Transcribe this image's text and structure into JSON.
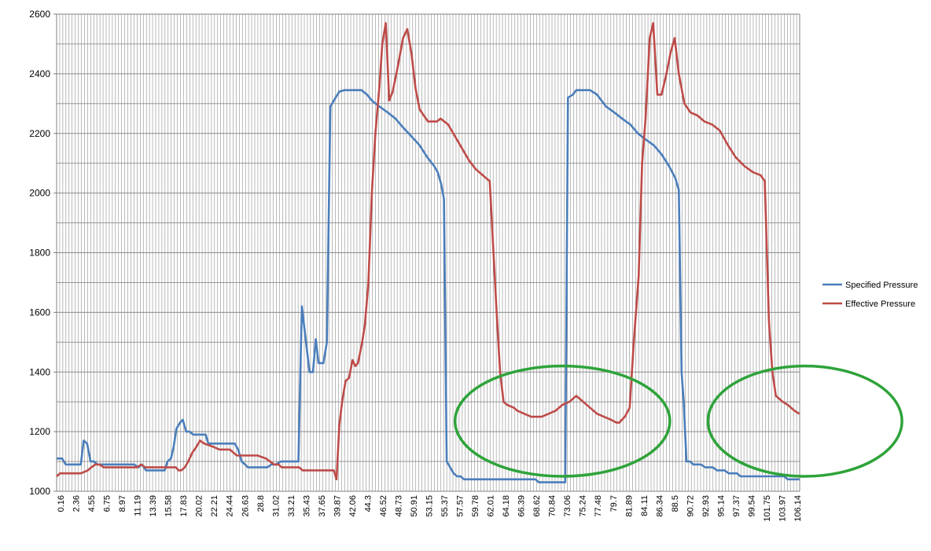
{
  "chart_data": {
    "type": "line",
    "title": "",
    "xlabel": "",
    "ylabel": "",
    "ylim": [
      1000,
      2600
    ],
    "y_ticks": [
      1000,
      1200,
      1400,
      1600,
      1800,
      2000,
      2200,
      2400,
      2600
    ],
    "x_range": [
      0,
      107.24
    ],
    "x_tick_labels": [
      "0.16",
      "2.36",
      "4.55",
      "6.75",
      "8.97",
      "11.19",
      "13.39",
      "15.58",
      "17.83",
      "20.02",
      "22.21",
      "24.44",
      "26.63",
      "28.8",
      "31.02",
      "33.21",
      "35.43",
      "37.65",
      "39.87",
      "42.06",
      "44.3",
      "46.52",
      "48.73",
      "50.91",
      "53.15",
      "55.37",
      "57.57",
      "59.78",
      "62.01",
      "64.18",
      "66.39",
      "68.62",
      "70.84",
      "73.06",
      "75.24",
      "77.48",
      "79.7",
      "81.89",
      "84.11",
      "86.34",
      "88.5",
      "90.72",
      "92.93",
      "95.14",
      "97.37",
      "99.54",
      "101.75",
      "103.97",
      "106.14"
    ],
    "grid": "on",
    "legend_position": "right",
    "series": [
      {
        "name": "Specified Pressure",
        "color": "#4a7ebb",
        "points": [
          [
            0,
            1110
          ],
          [
            0.8,
            1110
          ],
          [
            1.3,
            1090
          ],
          [
            2.6,
            1090
          ],
          [
            3.5,
            1090
          ],
          [
            3.9,
            1170
          ],
          [
            4.4,
            1160
          ],
          [
            4.9,
            1100
          ],
          [
            5.4,
            1100
          ],
          [
            5.9,
            1090
          ],
          [
            7,
            1090
          ],
          [
            9,
            1090
          ],
          [
            11.2,
            1090
          ],
          [
            11.8,
            1080
          ],
          [
            12.3,
            1090
          ],
          [
            12.9,
            1070
          ],
          [
            14.5,
            1070
          ],
          [
            15.6,
            1070
          ],
          [
            16,
            1100
          ],
          [
            16.5,
            1110
          ],
          [
            16.9,
            1150
          ],
          [
            17.3,
            1210
          ],
          [
            17.8,
            1230
          ],
          [
            18.2,
            1240
          ],
          [
            18.7,
            1200
          ],
          [
            19.2,
            1200
          ],
          [
            19.7,
            1190
          ],
          [
            20.7,
            1190
          ],
          [
            21.5,
            1190
          ],
          [
            21.9,
            1160
          ],
          [
            24.5,
            1160
          ],
          [
            25.7,
            1160
          ],
          [
            26.2,
            1140
          ],
          [
            26.7,
            1100
          ],
          [
            27.2,
            1090
          ],
          [
            27.6,
            1080
          ],
          [
            29,
            1080
          ],
          [
            30.4,
            1080
          ],
          [
            31,
            1090
          ],
          [
            31.6,
            1090
          ],
          [
            32.4,
            1100
          ],
          [
            34,
            1100
          ],
          [
            34.9,
            1100
          ],
          [
            35.4,
            1620
          ],
          [
            36,
            1500
          ],
          [
            36.5,
            1400
          ],
          [
            37,
            1400
          ],
          [
            37.4,
            1510
          ],
          [
            37.8,
            1430
          ],
          [
            38.5,
            1430
          ],
          [
            39,
            1500
          ],
          [
            39.5,
            2290
          ],
          [
            40,
            2310
          ],
          [
            40.8,
            2340
          ],
          [
            41.5,
            2345
          ],
          [
            42.5,
            2345
          ],
          [
            44,
            2345
          ],
          [
            44.8,
            2330
          ],
          [
            45.5,
            2310
          ],
          [
            46.6,
            2290
          ],
          [
            47.8,
            2270
          ],
          [
            48.9,
            2250
          ],
          [
            50,
            2220
          ],
          [
            51.2,
            2190
          ],
          [
            52.4,
            2160
          ],
          [
            53.5,
            2120
          ],
          [
            54.5,
            2090
          ],
          [
            55,
            2070
          ],
          [
            55.5,
            2030
          ],
          [
            55.9,
            1980
          ],
          [
            56.3,
            1100
          ],
          [
            56.8,
            1080
          ],
          [
            57.3,
            1060
          ],
          [
            57.8,
            1050
          ],
          [
            58.3,
            1050
          ],
          [
            58.8,
            1040
          ],
          [
            62,
            1040
          ],
          [
            66,
            1040
          ],
          [
            69.1,
            1040
          ],
          [
            69.6,
            1030
          ],
          [
            73.1,
            1030
          ],
          [
            73.4,
            1030
          ],
          [
            73.8,
            2320
          ],
          [
            74.5,
            2330
          ],
          [
            75,
            2345
          ],
          [
            77,
            2345
          ],
          [
            78,
            2330
          ],
          [
            79.3,
            2290
          ],
          [
            80.5,
            2270
          ],
          [
            81.6,
            2250
          ],
          [
            82.8,
            2230
          ],
          [
            83.9,
            2200
          ],
          [
            85,
            2180
          ],
          [
            86.2,
            2160
          ],
          [
            87.3,
            2130
          ],
          [
            88.4,
            2090
          ],
          [
            89.3,
            2050
          ],
          [
            89.8,
            2010
          ],
          [
            90.2,
            1400
          ],
          [
            90.5,
            1300
          ],
          [
            90.9,
            1100
          ],
          [
            91.4,
            1100
          ],
          [
            91.9,
            1090
          ],
          [
            93,
            1090
          ],
          [
            93.6,
            1080
          ],
          [
            94.7,
            1080
          ],
          [
            95.3,
            1070
          ],
          [
            96.4,
            1070
          ],
          [
            97,
            1060
          ],
          [
            98.2,
            1060
          ],
          [
            98.7,
            1050
          ],
          [
            100,
            1050
          ],
          [
            105,
            1050
          ],
          [
            105.5,
            1040
          ],
          [
            106.5,
            1040
          ],
          [
            107.2,
            1040
          ]
        ]
      },
      {
        "name": "Effective Pressure",
        "color": "#be4b48",
        "points": [
          [
            0,
            1050
          ],
          [
            0.5,
            1060
          ],
          [
            3.5,
            1060
          ],
          [
            4.5,
            1070
          ],
          [
            5,
            1080
          ],
          [
            5.6,
            1090
          ],
          [
            6.2,
            1090
          ],
          [
            6.8,
            1080
          ],
          [
            11,
            1080
          ],
          [
            11.6,
            1080
          ],
          [
            12.2,
            1090
          ],
          [
            12.8,
            1080
          ],
          [
            17.2,
            1080
          ],
          [
            17.6,
            1070
          ],
          [
            18,
            1070
          ],
          [
            18.5,
            1080
          ],
          [
            19,
            1100
          ],
          [
            19.6,
            1130
          ],
          [
            20.2,
            1150
          ],
          [
            20.7,
            1170
          ],
          [
            21.3,
            1160
          ],
          [
            22.5,
            1150
          ],
          [
            23.5,
            1140
          ],
          [
            25,
            1140
          ],
          [
            25.5,
            1130
          ],
          [
            26,
            1120
          ],
          [
            29,
            1120
          ],
          [
            30.2,
            1110
          ],
          [
            30.8,
            1100
          ],
          [
            31.4,
            1090
          ],
          [
            32,
            1090
          ],
          [
            32.5,
            1080
          ],
          [
            35,
            1080
          ],
          [
            35.5,
            1070
          ],
          [
            39.5,
            1070
          ],
          [
            40,
            1070
          ],
          [
            40.4,
            1040
          ],
          [
            40.8,
            1220
          ],
          [
            41.2,
            1300
          ],
          [
            41.7,
            1370
          ],
          [
            42.2,
            1380
          ],
          [
            42.7,
            1440
          ],
          [
            43.1,
            1420
          ],
          [
            43.5,
            1430
          ],
          [
            44.1,
            1500
          ],
          [
            44.5,
            1560
          ],
          [
            45,
            1700
          ],
          [
            45.5,
            2000
          ],
          [
            46,
            2200
          ],
          [
            46.6,
            2360
          ],
          [
            47,
            2500
          ],
          [
            47.5,
            2570
          ],
          [
            48,
            2310
          ],
          [
            48.5,
            2340
          ],
          [
            49.2,
            2420
          ],
          [
            50,
            2520
          ],
          [
            50.6,
            2550
          ],
          [
            51.2,
            2470
          ],
          [
            51.8,
            2350
          ],
          [
            52.4,
            2280
          ],
          [
            53.6,
            2240
          ],
          [
            54.9,
            2240
          ],
          [
            55.4,
            2250
          ],
          [
            56.5,
            2230
          ],
          [
            57.5,
            2190
          ],
          [
            58.5,
            2150
          ],
          [
            59.5,
            2110
          ],
          [
            60.5,
            2080
          ],
          [
            61.5,
            2060
          ],
          [
            62,
            2050
          ],
          [
            62.5,
            2040
          ],
          [
            63.5,
            1600
          ],
          [
            64,
            1400
          ],
          [
            64.5,
            1300
          ],
          [
            65,
            1290
          ],
          [
            66,
            1280
          ],
          [
            66.5,
            1270
          ],
          [
            67.5,
            1260
          ],
          [
            68.5,
            1250
          ],
          [
            70,
            1250
          ],
          [
            71,
            1260
          ],
          [
            72,
            1270
          ],
          [
            73,
            1290
          ],
          [
            74,
            1300
          ],
          [
            75,
            1320
          ],
          [
            76,
            1300
          ],
          [
            77,
            1280
          ],
          [
            78,
            1260
          ],
          [
            79,
            1250
          ],
          [
            80,
            1240
          ],
          [
            80.8,
            1230
          ],
          [
            81.2,
            1230
          ],
          [
            82,
            1250
          ],
          [
            82.7,
            1280
          ],
          [
            83.3,
            1500
          ],
          [
            84,
            1720
          ],
          [
            84.5,
            2100
          ],
          [
            85,
            2250
          ],
          [
            85.6,
            2520
          ],
          [
            86.1,
            2570
          ],
          [
            86.7,
            2330
          ],
          [
            87.3,
            2330
          ],
          [
            88,
            2400
          ],
          [
            88.6,
            2470
          ],
          [
            89.2,
            2520
          ],
          [
            89.8,
            2400
          ],
          [
            90.6,
            2300
          ],
          [
            91.5,
            2270
          ],
          [
            92.5,
            2260
          ],
          [
            93.5,
            2240
          ],
          [
            94.6,
            2230
          ],
          [
            95.7,
            2210
          ],
          [
            96.9,
            2160
          ],
          [
            98,
            2120
          ],
          [
            99.3,
            2090
          ],
          [
            100.5,
            2070
          ],
          [
            101.6,
            2060
          ],
          [
            102.2,
            2040
          ],
          [
            102.8,
            1570
          ],
          [
            103.3,
            1400
          ],
          [
            103.8,
            1320
          ],
          [
            104.3,
            1310
          ],
          [
            104.8,
            1300
          ],
          [
            105.5,
            1290
          ],
          [
            106,
            1280
          ],
          [
            106.5,
            1270
          ],
          [
            107.2,
            1260
          ]
        ]
      }
    ],
    "annotations": [
      {
        "type": "ellipse",
        "x_range": [
          57.5,
          88.5
        ],
        "y_range": [
          1050,
          1420
        ],
        "color": "#2ea33a"
      },
      {
        "type": "ellipse",
        "x_range": [
          94.0,
          122.0
        ],
        "y_range": [
          1050,
          1420
        ],
        "color": "#2ea33a"
      }
    ]
  }
}
